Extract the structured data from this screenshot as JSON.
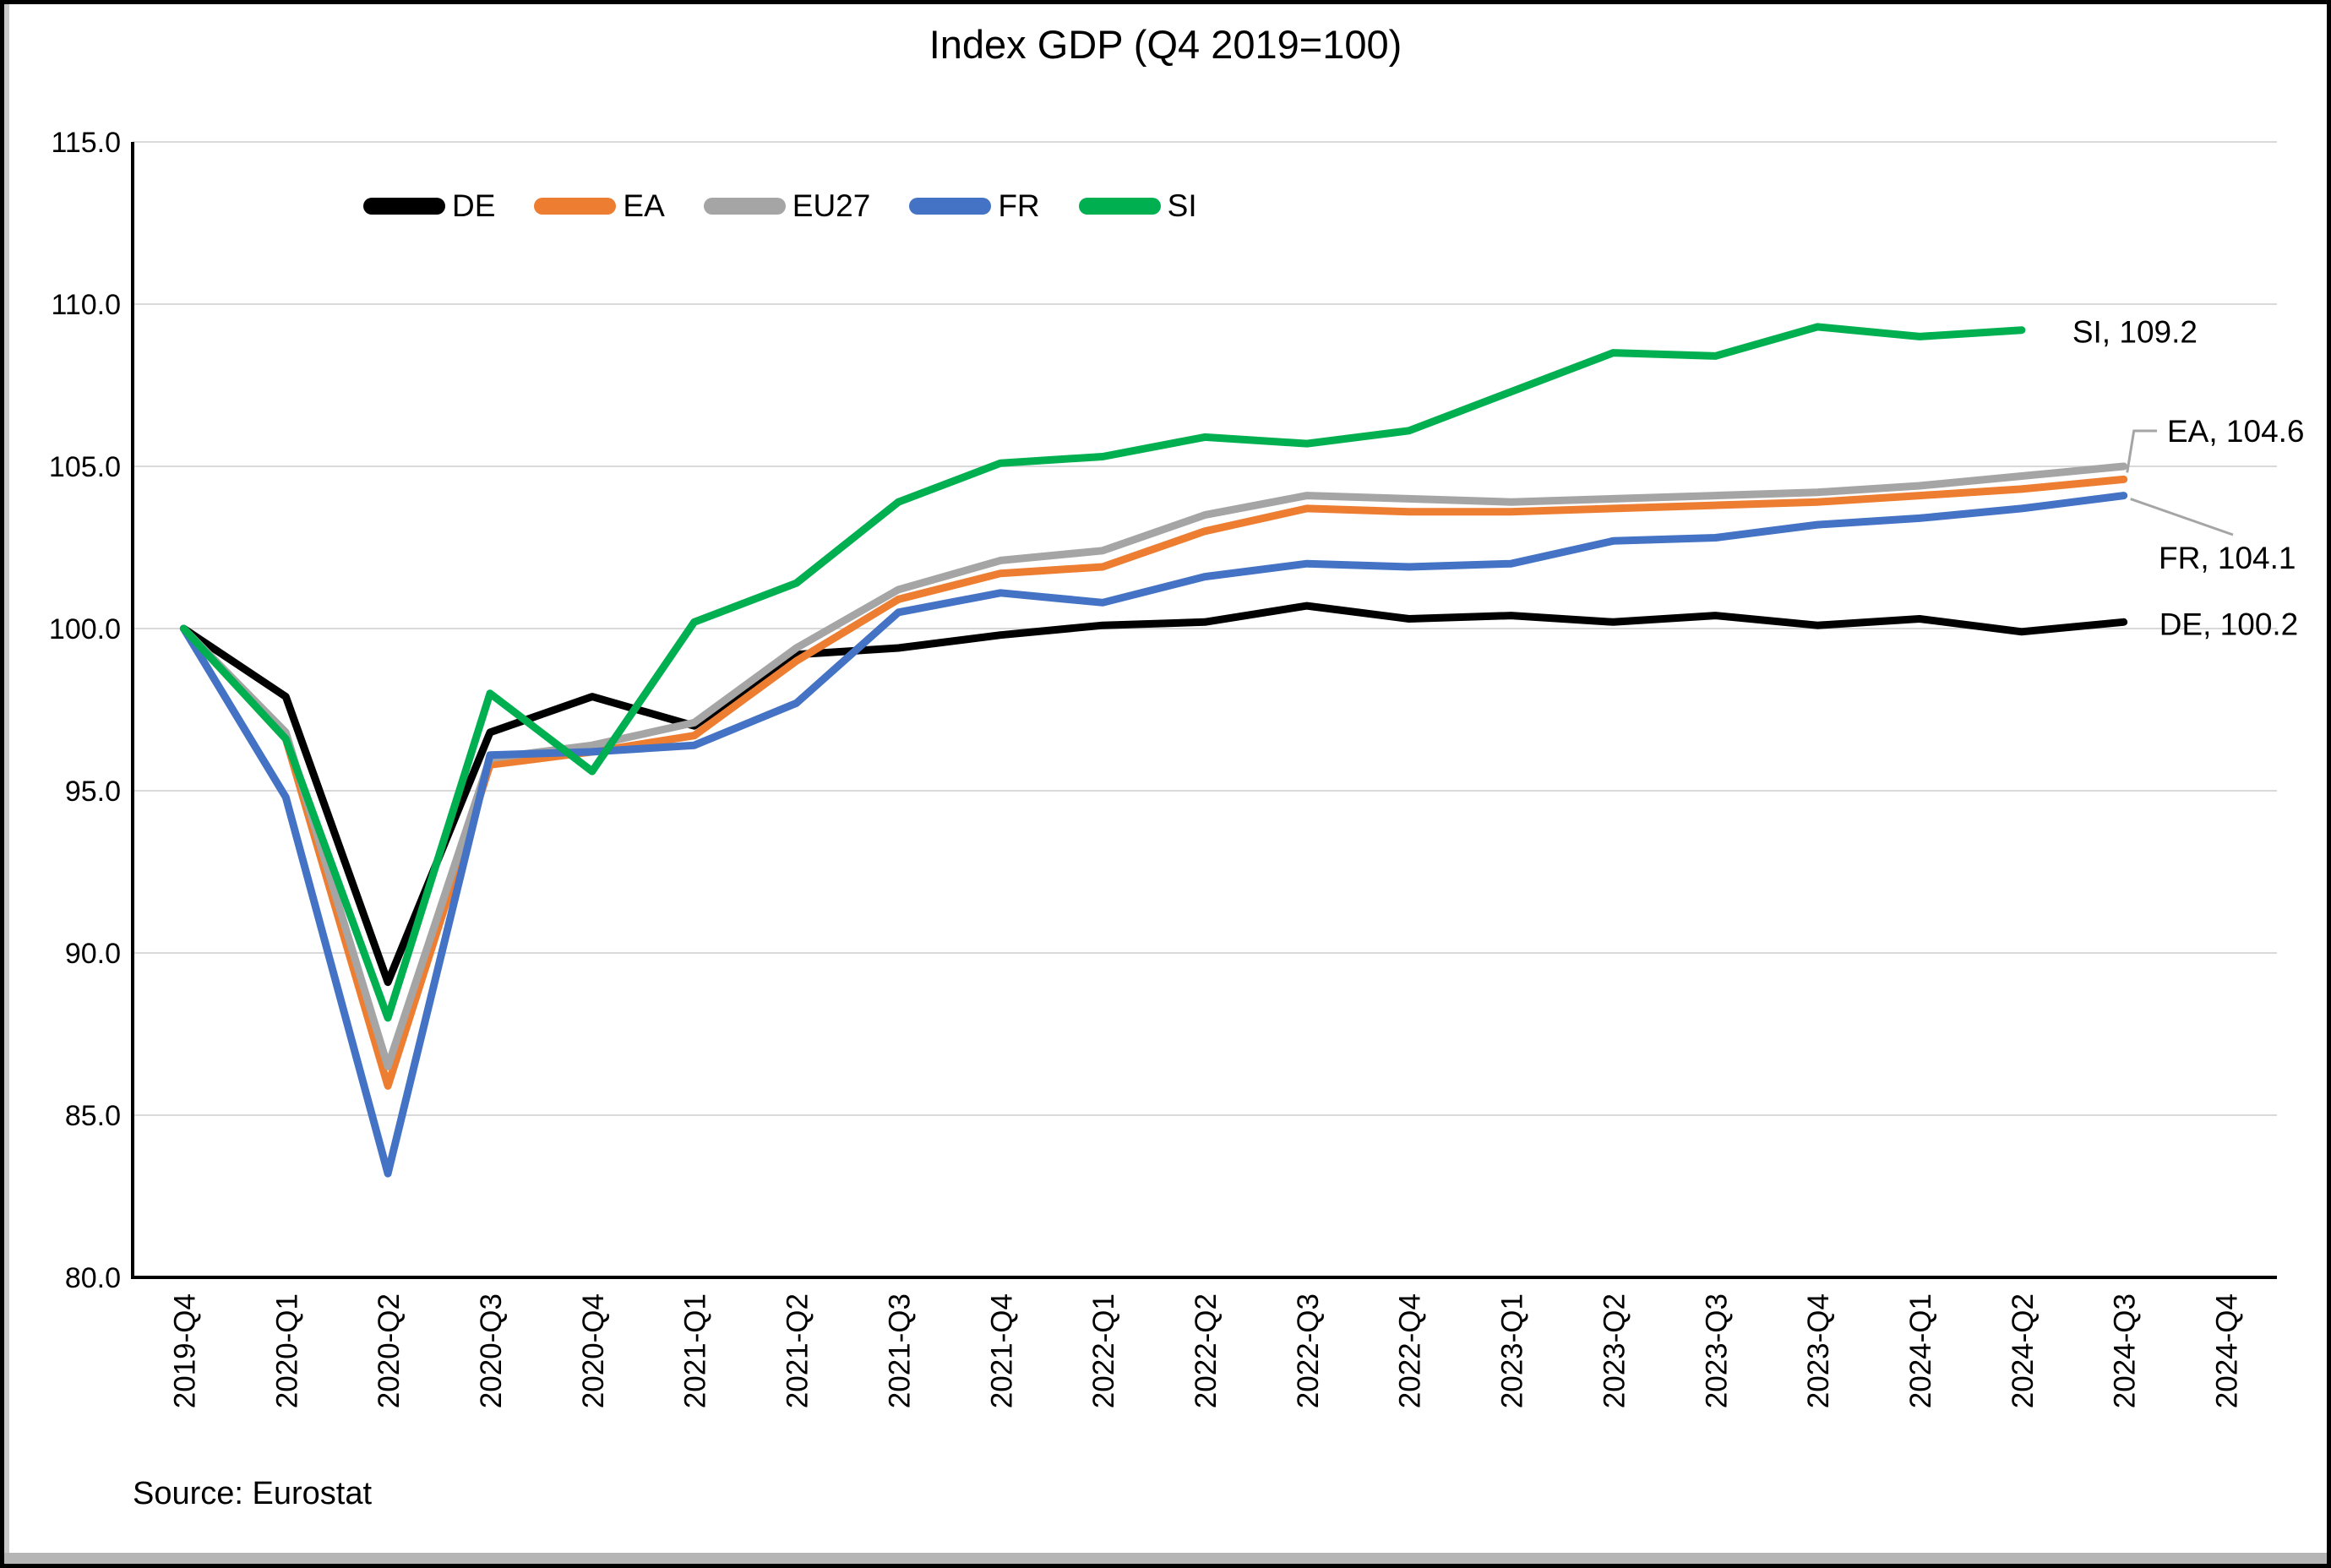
{
  "title": "Index GDP (Q4 2019=100)",
  "source": "Source: Eurostat",
  "chart_data": {
    "type": "line",
    "title": "Index GDP (Q4 2019=100)",
    "xlabel": "",
    "ylabel": "",
    "ylim": [
      80,
      115
    ],
    "grid": true,
    "legend_position": "top",
    "y_ticks": [
      {
        "v": 115,
        "label": "115.0"
      },
      {
        "v": 110,
        "label": "110.0"
      },
      {
        "v": 105,
        "label": "105.0"
      },
      {
        "v": 100,
        "label": "100.0"
      },
      {
        "v": 95,
        "label": "95.0"
      },
      {
        "v": 90,
        "label": "90.0"
      },
      {
        "v": 85,
        "label": "85.0"
      },
      {
        "v": 80,
        "label": "80.0"
      }
    ],
    "categories": [
      "2019-Q4",
      "2020-Q1",
      "2020-Q2",
      "2020-Q3",
      "2020-Q4",
      "2021-Q1",
      "2021-Q2",
      "2021-Q3",
      "2021-Q4",
      "2022-Q1",
      "2022-Q2",
      "2022-Q3",
      "2022-Q4",
      "2023-Q1",
      "2023-Q2",
      "2023-Q3",
      "2023-Q4",
      "2024-Q1",
      "2024-Q2",
      "2024-Q3",
      "2024-Q4"
    ],
    "series": [
      {
        "name": "DE",
        "color": "#000000",
        "values": [
          100.0,
          97.9,
          89.1,
          96.8,
          97.9,
          97.0,
          99.2,
          99.4,
          99.8,
          100.1,
          100.2,
          100.7,
          100.3,
          100.4,
          100.2,
          100.4,
          100.1,
          100.3,
          99.9,
          100.2,
          null
        ],
        "end_label": "DE, 100.2"
      },
      {
        "name": "EA",
        "color": "#ED7D31",
        "values": [
          100.0,
          96.6,
          85.9,
          95.8,
          96.2,
          96.7,
          99.0,
          100.9,
          101.7,
          101.9,
          103.0,
          103.7,
          103.6,
          103.6,
          103.7,
          103.8,
          103.9,
          104.1,
          104.3,
          104.6,
          null
        ],
        "end_label": "EA, 104.6"
      },
      {
        "name": "EU27",
        "color": "#A5A5A5",
        "values": [
          100.0,
          96.8,
          86.5,
          96.0,
          96.4,
          97.1,
          99.4,
          101.2,
          102.1,
          102.4,
          103.5,
          104.1,
          104.0,
          103.9,
          104.0,
          104.1,
          104.2,
          104.4,
          104.7,
          105.0,
          null
        ],
        "end_label": null
      },
      {
        "name": "FR",
        "color": "#4472C4",
        "values": [
          100.0,
          94.8,
          83.2,
          96.1,
          96.2,
          96.4,
          97.7,
          100.5,
          101.1,
          100.8,
          101.6,
          102.0,
          101.9,
          102.0,
          102.7,
          102.8,
          103.2,
          103.4,
          103.7,
          104.1,
          null
        ],
        "end_label": "FR, 104.1"
      },
      {
        "name": "SI",
        "color": "#00B050",
        "values": [
          100.0,
          96.6,
          88.0,
          98.0,
          95.6,
          100.2,
          101.4,
          103.9,
          105.1,
          105.3,
          105.9,
          105.7,
          106.1,
          107.3,
          108.5,
          108.4,
          109.3,
          109.0,
          109.2,
          null,
          null
        ],
        "end_label": "SI, 109.2"
      }
    ]
  }
}
